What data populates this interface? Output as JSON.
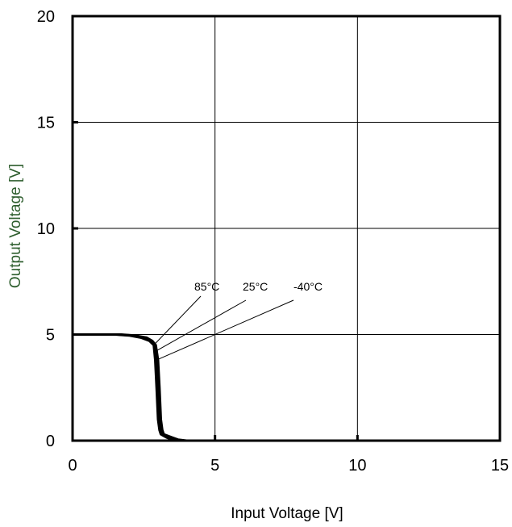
{
  "chart_data": {
    "type": "line",
    "title": "",
    "xlabel": "Input Voltage [V]",
    "ylabel": "Output Voltage [V]",
    "xlim": [
      0,
      15
    ],
    "ylim": [
      0,
      20
    ],
    "xticks": [
      "0",
      "5",
      "10",
      "15"
    ],
    "yticks": [
      "0",
      "5",
      "10",
      "15",
      "20"
    ],
    "grid": true,
    "legend": "none",
    "colors": {
      "axis": "#000000",
      "grid": "#000000",
      "series": "#000000",
      "ylabel": "#2e5e2e"
    },
    "series": [
      {
        "name": "85°C",
        "x": [
          0,
          1.5,
          2.0,
          2.4,
          2.7,
          2.85,
          2.9,
          2.95,
          3.0,
          3.05,
          3.1,
          3.3,
          3.5,
          3.8
        ],
        "y": [
          5,
          5,
          4.95,
          4.85,
          4.7,
          4.5,
          3.8,
          2.5,
          1.0,
          0.5,
          0.3,
          0.15,
          0.05,
          0
        ]
      },
      {
        "name": "25°C",
        "x": [
          0,
          1.6,
          2.1,
          2.5,
          2.75,
          2.88,
          2.95,
          3.0,
          3.05,
          3.1,
          3.15,
          3.4,
          3.6,
          3.9
        ],
        "y": [
          5,
          5,
          4.95,
          4.85,
          4.7,
          4.5,
          3.8,
          2.5,
          1.0,
          0.5,
          0.3,
          0.15,
          0.05,
          0
        ]
      },
      {
        "name": "-40°C",
        "x": [
          0,
          1.7,
          2.2,
          2.6,
          2.8,
          2.92,
          3.0,
          3.05,
          3.1,
          3.15,
          3.2,
          3.5,
          3.7,
          4.0
        ],
        "y": [
          5,
          5,
          4.95,
          4.85,
          4.7,
          4.5,
          3.8,
          2.5,
          1.0,
          0.5,
          0.3,
          0.15,
          0.05,
          0
        ]
      }
    ],
    "annotations": [
      {
        "text": "85°C",
        "target": [
          2.85,
          4.5
        ]
      },
      {
        "text": "25°C",
        "target": [
          2.9,
          4.2
        ]
      },
      {
        "text": "-40°C",
        "target": [
          2.95,
          3.8
        ]
      }
    ]
  }
}
